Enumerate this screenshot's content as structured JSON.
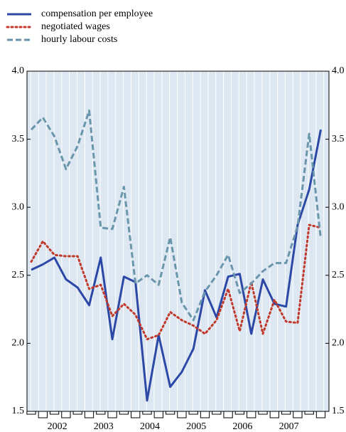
{
  "chart_data": {
    "type": "line",
    "categories": [
      null,
      null,
      "2002",
      null,
      null,
      null,
      "2003",
      null,
      null,
      null,
      "2004",
      null,
      null,
      null,
      "2005",
      null,
      null,
      null,
      "2006",
      null,
      null,
      null,
      "2007",
      null,
      null,
      null
    ],
    "series": [
      {
        "name": "compensation per employee",
        "color": "#2c48a6",
        "dash": "solid",
        "values": [
          2.54,
          2.58,
          2.63,
          2.47,
          2.41,
          2.28,
          2.63,
          2.03,
          2.49,
          2.45,
          1.58,
          2.06,
          1.68,
          1.79,
          1.96,
          2.39,
          2.19,
          2.49,
          2.51,
          2.07,
          2.47,
          2.29,
          2.27,
          2.87,
          3.13,
          3.57
        ]
      },
      {
        "name": "negotiated wages",
        "color": "#c0392b",
        "dash": "dotted",
        "values": [
          2.6,
          2.75,
          2.65,
          2.64,
          2.64,
          2.4,
          2.43,
          2.2,
          2.29,
          2.21,
          2.03,
          2.06,
          2.23,
          2.17,
          2.13,
          2.07,
          2.17,
          2.4,
          2.09,
          2.45,
          2.07,
          2.32,
          2.16,
          2.15,
          2.87,
          2.85
        ]
      },
      {
        "name": "hourly labour costs",
        "color": "#6a96ac",
        "dash": "dashed",
        "values": [
          3.57,
          3.66,
          3.52,
          3.28,
          3.45,
          3.71,
          2.85,
          2.84,
          3.15,
          2.44,
          2.5,
          2.43,
          2.78,
          2.3,
          2.17,
          2.38,
          2.5,
          2.65,
          2.37,
          2.44,
          2.53,
          2.59,
          2.59,
          2.86,
          3.54,
          2.77
        ]
      }
    ],
    "ylim": [
      1.5,
      4.0
    ],
    "yticks": [
      {
        "value": 1.5,
        "label": "1.5"
      },
      {
        "value": 2.0,
        "label": "2.0"
      },
      {
        "value": 2.5,
        "label": "2.5"
      },
      {
        "value": 3.0,
        "label": "3.0"
      },
      {
        "value": 3.5,
        "label": "3.5"
      },
      {
        "value": 4.0,
        "label": "4.0"
      }
    ],
    "legend": "top-left"
  }
}
